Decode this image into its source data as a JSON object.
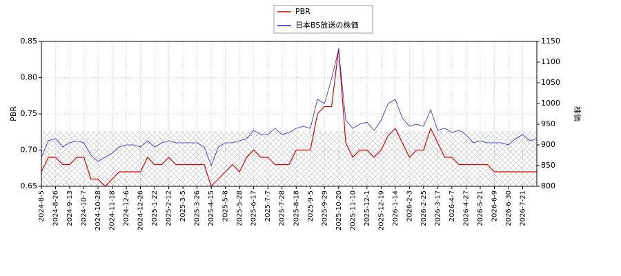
{
  "chart_data": {
    "type": "line",
    "categories": [
      "2024-8-5",
      null,
      "2024-8-26",
      null,
      "2024-9-13",
      null,
      "2024-10-7",
      null,
      "2024-10-28",
      null,
      "2024-11-18",
      null,
      "2024-12-6",
      null,
      "2024-12-26",
      null,
      "2025-1-22",
      null,
      "2025-2-12",
      null,
      "2025-3-5",
      null,
      "2025-3-26",
      null,
      "2025-4-15",
      null,
      "2025-5-8",
      null,
      "2025-5-28",
      null,
      "2025-6-17",
      null,
      "2025-7-7",
      null,
      "2025-7-28",
      null,
      "2025-8-18",
      null,
      "2025-9-5",
      null,
      "2025-9-29",
      null,
      "2025-10-20",
      null,
      "2025-11-10",
      null,
      "2025-12-1",
      null,
      "2025-12-19",
      null,
      "2026-1-14",
      null,
      "2026-2-3",
      null,
      "2026-2-25",
      null,
      "2026-3-17",
      null,
      "2026-4-7",
      null,
      "2026-4-27",
      null,
      "2026-5-21",
      null,
      "2026-6-9",
      null,
      "2026-6-30",
      null,
      "2026-7-21",
      null,
      null
    ],
    "series": [
      {
        "name": "PBR",
        "color": "#dd0000",
        "axis": "y",
        "values": [
          0.67,
          0.69,
          0.69,
          0.68,
          0.68,
          0.69,
          0.69,
          0.66,
          0.66,
          0.65,
          0.66,
          0.67,
          0.67,
          0.67,
          0.67,
          0.69,
          0.68,
          0.68,
          0.69,
          0.68,
          0.68,
          0.68,
          0.68,
          0.68,
          0.65,
          0.66,
          0.67,
          0.68,
          0.67,
          0.69,
          0.7,
          0.69,
          0.69,
          0.68,
          0.68,
          0.68,
          0.7,
          0.7,
          0.7,
          0.75,
          0.76,
          0.76,
          0.84,
          0.71,
          0.69,
          0.7,
          0.7,
          0.69,
          0.7,
          0.72,
          0.73,
          0.71,
          0.69,
          0.7,
          0.7,
          0.73,
          0.71,
          0.69,
          0.69,
          0.68,
          0.68,
          0.68,
          0.68,
          0.68,
          0.67,
          0.67,
          0.67,
          0.67,
          0.67,
          0.67,
          0.67
        ]
      },
      {
        "name": "日本BS放送の株価",
        "color": "#2222cc",
        "axis": "y2",
        "values": [
          870,
          910,
          915,
          895,
          905,
          910,
          905,
          875,
          860,
          870,
          880,
          895,
          900,
          900,
          895,
          910,
          895,
          905,
          910,
          905,
          905,
          905,
          905,
          895,
          850,
          895,
          905,
          905,
          910,
          915,
          935,
          925,
          925,
          940,
          925,
          930,
          940,
          945,
          940,
          1010,
          1000,
          1060,
          1130,
          960,
          940,
          950,
          955,
          935,
          960,
          1000,
          1010,
          965,
          945,
          950,
          945,
          985,
          935,
          940,
          930,
          935,
          925,
          905,
          910,
          905,
          905,
          905,
          900,
          915,
          925,
          910,
          915
        ]
      }
    ],
    "ylabel": "PBR",
    "y2label": "株価",
    "ylim": [
      0.65,
      0.85
    ],
    "yticks": [
      0.65,
      {
        "value": 0.7,
        "label": "0.70"
      },
      0.75,
      {
        "value": 0.8,
        "label": "0.80"
      },
      0.85
    ],
    "y2lim": [
      800,
      1150
    ],
    "y2ticks": [
      800,
      850,
      900,
      950,
      1000,
      1050,
      1100,
      1150
    ],
    "grid": true
  }
}
